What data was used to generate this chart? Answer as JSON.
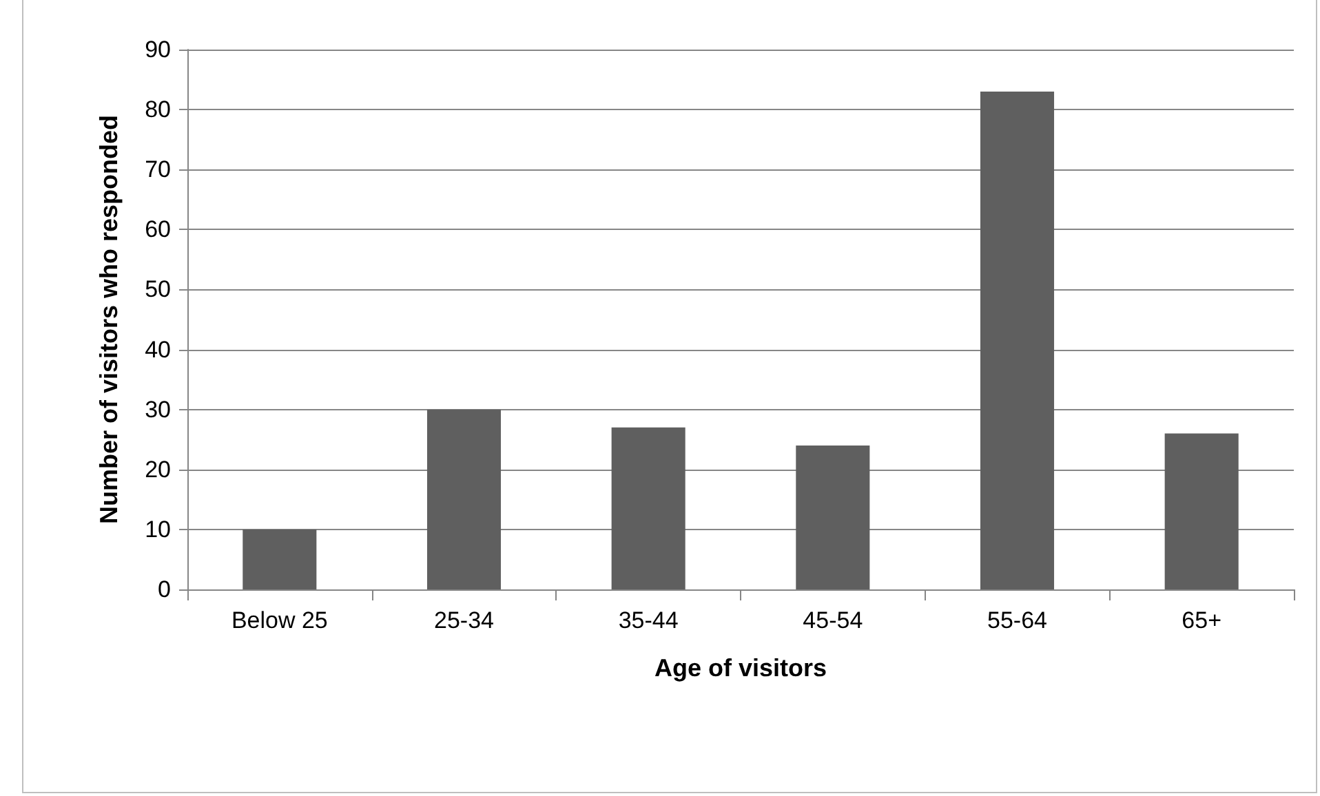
{
  "chart_data": {
    "type": "bar",
    "xlabel": "Age of visitors",
    "ylabel": "Number of visitors who responded",
    "categories": [
      "Below 25",
      "25-34",
      "35-44",
      "45-54",
      "55-64",
      "65+"
    ],
    "values": [
      10,
      30,
      27,
      24,
      83,
      26
    ],
    "color": "#5f5f5f",
    "ylim": [
      0,
      90
    ],
    "yticks": [
      0,
      10,
      20,
      30,
      40,
      50,
      60,
      70,
      80,
      90
    ],
    "grid": "y"
  }
}
